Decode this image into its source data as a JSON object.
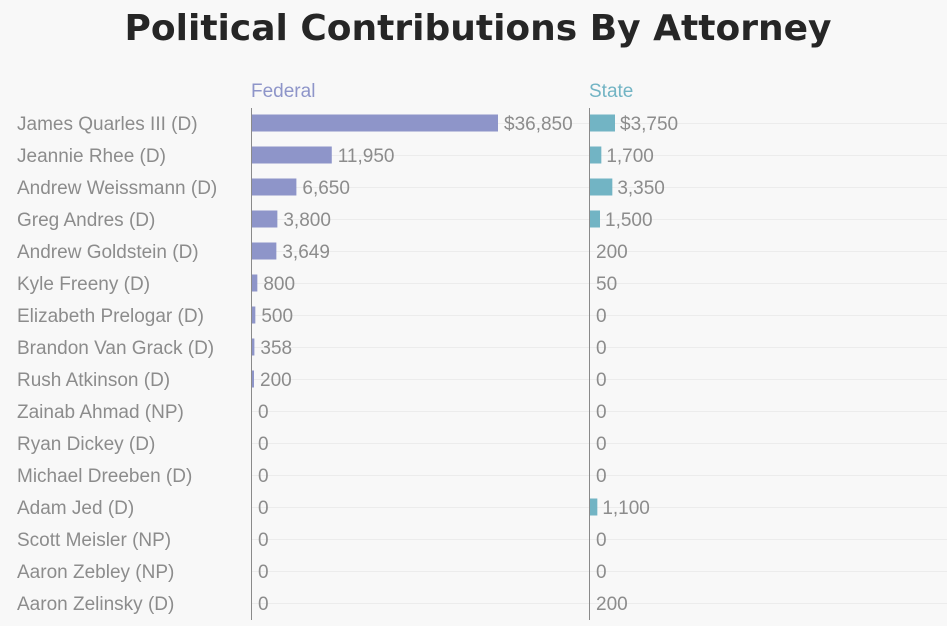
{
  "chart_data": {
    "type": "bar",
    "title": "Political Contributions By Attorney",
    "categories": [
      "James Quarles III (D)",
      "Jeannie Rhee (D)",
      "Andrew Weissmann (D)",
      "Greg Andres (D)",
      "Andrew Goldstein (D)",
      "Kyle Freeny (D)",
      "Elizabeth Prelogar (D)",
      "Brandon Van Grack (D)",
      "Rush Atkinson (D)",
      "Zainab Ahmad (NP)",
      "Ryan Dickey (D)",
      "Michael Dreeben (D)",
      "Adam Jed (D)",
      "Scott Meisler (NP)",
      "Aaron Zebley (NP)",
      "Aaron Zelinsky (D)"
    ],
    "series": [
      {
        "name": "Federal",
        "color": "#8e95c9",
        "values": [
          36850,
          11950,
          6650,
          3800,
          3649,
          800,
          500,
          358,
          200,
          0,
          0,
          0,
          0,
          0,
          0,
          0
        ],
        "labels": [
          "$36,850",
          "11,950",
          "6,650",
          "3,800",
          "3,649",
          "800",
          "500",
          "358",
          "200",
          "0",
          "0",
          "0",
          "0",
          "0",
          "0",
          "0"
        ]
      },
      {
        "name": "State",
        "color": "#72b4c4",
        "values": [
          3750,
          1700,
          3350,
          1500,
          200,
          50,
          0,
          0,
          0,
          0,
          0,
          0,
          1100,
          0,
          0,
          200
        ],
        "labels": [
          "$3,750",
          "1,700",
          "3,350",
          "1,500",
          "200",
          "50",
          "0",
          "0",
          "0",
          "0",
          "0",
          "0",
          "1,100",
          "0",
          "0",
          "200"
        ]
      }
    ],
    "xlim": [
      0,
      36850
    ],
    "grid": true,
    "legend": "column headers"
  }
}
